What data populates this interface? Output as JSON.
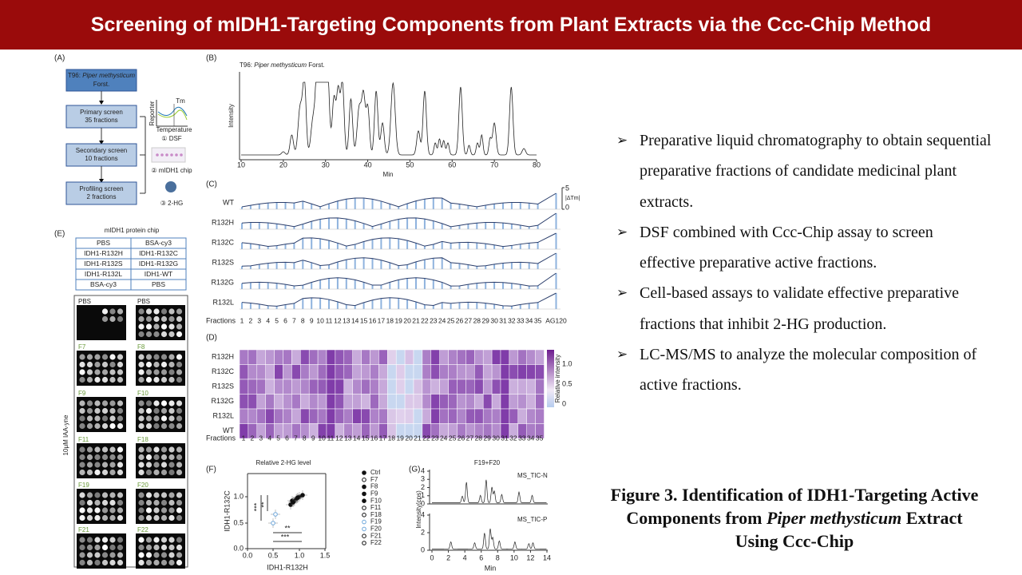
{
  "header": {
    "title": "Screening of mIDH1-Targeting Components from Plant Extracts via the Ccc-Chip Method"
  },
  "panel_a": {
    "label": "(A)",
    "source": {
      "code": "T96:",
      "species": "Piper methysticum",
      "authority": "Forst."
    },
    "steps": [
      {
        "name": "Primary screen",
        "detail": "35 fractions"
      },
      {
        "name": "Secondary screen",
        "detail": "10 fractions"
      },
      {
        "name": "Profiling screen",
        "detail": "2 fractions"
      }
    ],
    "dsf": {
      "tm": "Tm",
      "y_label": "Reporter",
      "x_label": "Temperature"
    },
    "assays": [
      "① DSF",
      "② mIDH1 chip",
      "③ 2-HG"
    ]
  },
  "panel_b": {
    "label": "(B)",
    "title": {
      "code": "T96:",
      "species": "Piper methysticum",
      "authority": "Forst."
    },
    "y_label": "Intensity",
    "x_label": "Min",
    "xticks": [
      10,
      20,
      30,
      40,
      50,
      60,
      70,
      80
    ]
  },
  "panel_c": {
    "label": "(C)",
    "rows": [
      "WT",
      "R132H",
      "R132C",
      "R132S",
      "R132G",
      "R132L"
    ],
    "x_label": "Fractions",
    "fractions": [
      1,
      2,
      3,
      4,
      5,
      6,
      7,
      8,
      9,
      10,
      11,
      12,
      13,
      14,
      15,
      16,
      17,
      18,
      19,
      20,
      21,
      22,
      23,
      24,
      25,
      26,
      27,
      28,
      29,
      30,
      31,
      32,
      33,
      34,
      35,
      "AG120"
    ],
    "scale": {
      "top": "5",
      "label": "|ΔTm|",
      "bottom": "0"
    }
  },
  "panel_d": {
    "label": "(D)",
    "rows": [
      "R132H",
      "R132C",
      "R132S",
      "R132G",
      "R132L",
      "WT"
    ],
    "x_label": "Fractions",
    "fractions": [
      1,
      2,
      3,
      4,
      5,
      6,
      7,
      8,
      9,
      10,
      11,
      12,
      13,
      14,
      15,
      16,
      17,
      18,
      19,
      20,
      21,
      22,
      23,
      24,
      25,
      26,
      27,
      28,
      29,
      30,
      31,
      32,
      33,
      34,
      35
    ],
    "colorbar_label": "Relative intensity",
    "colorbar_ticks": [
      "1.0",
      "0.5",
      "0"
    ]
  },
  "panel_e": {
    "label": "(E)",
    "title": "mIDH1 protein chip",
    "layout": [
      [
        "PBS",
        "BSA-cy3"
      ],
      [
        "IDH1-R132H",
        "IDH1-R132C"
      ],
      [
        "IDH1-R132S",
        "IDH1-R132G"
      ],
      [
        "IDH1-R132L",
        "IDH1-WT"
      ],
      [
        "BSA-cy3",
        "PBS"
      ]
    ],
    "side_label": "10μM IAA-yne",
    "images": [
      "PBS",
      "PBS",
      "F7",
      "F8",
      "F9",
      "F10",
      "F11",
      "F18",
      "F19",
      "F20",
      "F21",
      "F22"
    ]
  },
  "panel_f": {
    "label": "(F)",
    "title": "Relative 2-HG level",
    "x_label": "IDH1-R132H",
    "y_label": "IDH1-R132C",
    "xticks": [
      "0.0",
      "0.5",
      "1.0",
      "1.5"
    ],
    "yticks": [
      "0.0",
      "0.5",
      "1.0"
    ],
    "significance": [
      "***",
      "**",
      "**",
      "***"
    ],
    "legend": [
      "Ctrl",
      "F7",
      "F8",
      "F9",
      "F10",
      "F11",
      "F18",
      "F19",
      "F20",
      "F21",
      "F22"
    ]
  },
  "panel_g": {
    "label": "(G)",
    "title": "F19+F20",
    "y_label": "Intensity(cps)",
    "x_label": "Min",
    "xticks": [
      0,
      2,
      4,
      6,
      8,
      10,
      12,
      14
    ],
    "top": {
      "name": "MS_TIC-N",
      "yticks": [
        0,
        1,
        2,
        3,
        4
      ]
    },
    "bottom": {
      "name": "MS_TIC-P",
      "yticks": [
        0,
        2,
        4
      ]
    }
  },
  "bullets": [
    "Preparative liquid chromatography to obtain sequential preparative fractions of candidate medicinal plant extracts.",
    "DSF combined with Ccc-Chip assay to screen effective preparative active fractions.",
    "Cell-based assays to validate effective preparative fractions that inhibit 2-HG production.",
    "LC-MS/MS to analyze the molecular composition of active fractions."
  ],
  "caption": {
    "prefix": "Figure 3. Identification of IDH1-Targeting Active Components from",
    "species": "Piper methysticum",
    "suffix": "Extract Using Ccc-Chip"
  }
}
